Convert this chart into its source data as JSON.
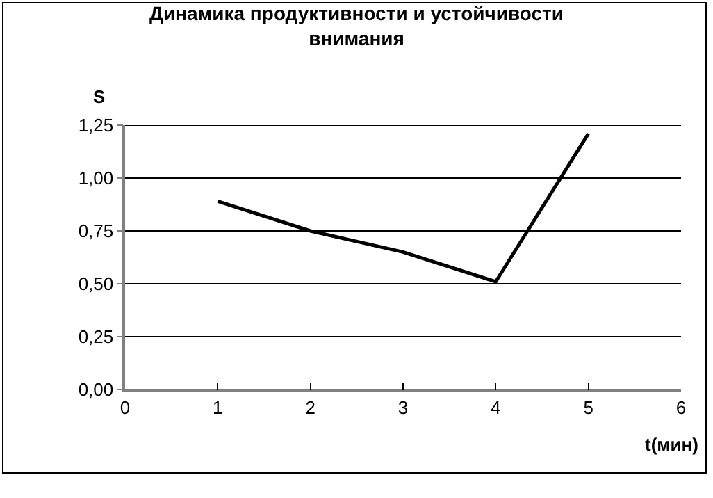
{
  "chart_data": {
    "type": "line",
    "title": "Динамика продуктивности и устойчивости\nвнимания",
    "xlabel": "t(мин)",
    "ylabel": "S",
    "x": [
      1,
      2,
      3,
      4,
      5
    ],
    "series": [
      {
        "color": "#000000",
        "values": [
          0.89,
          0.75,
          0.65,
          0.51,
          1.21
        ]
      }
    ],
    "xlim": [
      0,
      6
    ],
    "xticks": [
      0,
      1,
      2,
      3,
      4,
      5,
      6
    ],
    "ylim": [
      0,
      1.25
    ],
    "yticks": [
      {
        "value": 0,
        "label": "0,00"
      },
      {
        "value": 0.25,
        "label": "0,25"
      },
      {
        "value": 0.5,
        "label": "0,50"
      },
      {
        "value": 0.75,
        "label": "0,75"
      },
      {
        "value": 1.0,
        "label": "1,00"
      },
      {
        "value": 1.25,
        "label": "1,25"
      }
    ],
    "grid": "y",
    "marker": "none",
    "line_style": "solid"
  }
}
